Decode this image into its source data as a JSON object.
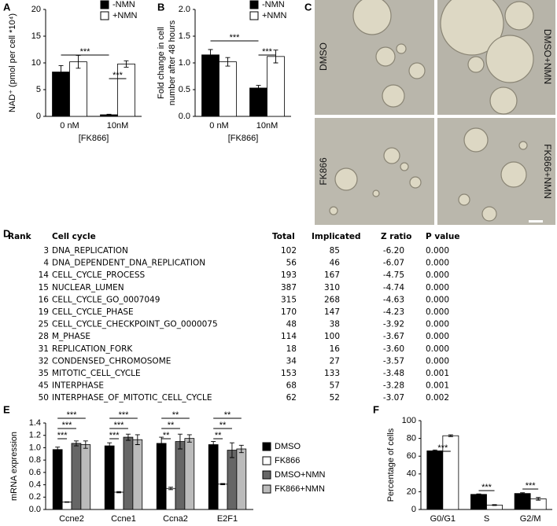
{
  "panels": [
    "A",
    "B",
    "C",
    "D",
    "E",
    "F"
  ],
  "images": [
    "DMSO",
    "DMSO+NMN",
    "FK866",
    "FK866+NMN"
  ],
  "chart_data": [
    {
      "type": "bar",
      "ylabel": "NAD⁺ (pmol per cell *10⁴)",
      "xlabel": "[FK866]",
      "categories": [
        "0 nM",
        "10nM"
      ],
      "series": [
        {
          "name": "-NMN",
          "color": "#000000",
          "values": [
            8.3,
            0.3
          ],
          "errors": [
            1.2,
            0.1
          ]
        },
        {
          "name": "+NMN",
          "color": "#ffffff",
          "values": [
            10.2,
            9.8
          ],
          "errors": [
            1.2,
            0.6
          ]
        }
      ],
      "ylim": [
        0,
        20
      ],
      "yticks": [
        0,
        5,
        10,
        15,
        20
      ],
      "annotations": [
        "***",
        "***"
      ]
    },
    {
      "type": "bar",
      "ylabel": "Fold change in cell number after 48 hours",
      "xlabel": "[FK866]",
      "categories": [
        "0 nM",
        "10nM"
      ],
      "series": [
        {
          "name": "-NMN",
          "color": "#000000",
          "values": [
            1.15,
            0.53
          ],
          "errors": [
            0.1,
            0.05
          ]
        },
        {
          "name": "+NMN",
          "color": "#ffffff",
          "values": [
            1.02,
            1.12
          ],
          "errors": [
            0.08,
            0.12
          ]
        }
      ],
      "ylim": [
        0,
        2
      ],
      "yticks": [
        {
          "value": 0,
          "label": "0.0"
        },
        {
          "value": 0.5,
          "label": "0.5"
        },
        {
          "value": 1,
          "label": "1.0"
        },
        {
          "value": 1.5,
          "label": "1.5"
        },
        {
          "value": 2,
          "label": "2.0"
        }
      ],
      "annotations": [
        "***",
        "***"
      ]
    },
    {
      "type": "bar",
      "ylabel": "mRNA expression",
      "categories": [
        "Ccne2",
        "Ccne1",
        "Ccna2",
        "E2F1"
      ],
      "series": [
        {
          "name": "DMSO",
          "color": "#000000",
          "values": [
            0.97,
            1.03,
            1.07,
            1.05
          ],
          "errors": [
            0.04,
            0.05,
            0.1,
            0.05
          ]
        },
        {
          "name": "FK866",
          "color": "#ffffff",
          "values": [
            0.12,
            0.28,
            0.34,
            0.41
          ],
          "errors": [
            0.005,
            0.01,
            0.02,
            0.01
          ]
        },
        {
          "name": "DMSO+NMN",
          "color": "#666666",
          "values": [
            1.07,
            1.17,
            1.1,
            0.96
          ],
          "errors": [
            0.04,
            0.05,
            0.12,
            0.12
          ]
        },
        {
          "name": "FK866+NMN",
          "color": "#bbbbbb",
          "values": [
            1.05,
            1.13,
            1.15,
            0.98
          ],
          "errors": [
            0.06,
            0.08,
            0.06,
            0.06
          ]
        }
      ],
      "ylim": [
        0,
        1.4
      ],
      "yticks": [
        {
          "value": 0,
          "label": "0.0"
        },
        0.2,
        0.4,
        0.6,
        0.8,
        {
          "value": 1,
          "label": "1.0"
        },
        1.2,
        1.4
      ],
      "annotations": [
        "***",
        "***",
        "***",
        "***",
        "***",
        "***",
        "**",
        "**",
        "**",
        "**",
        "**",
        "**"
      ]
    },
    {
      "type": "bar",
      "ylabel": "Percentage of cells",
      "categories": [
        "G0/G1",
        "S",
        "G2/M"
      ],
      "series": [
        {
          "color": "#000000",
          "values": [
            66,
            17,
            18
          ],
          "errors": [
            1,
            0.5,
            0.8
          ]
        },
        {
          "color": "#ffffff",
          "values": [
            83,
            5,
            12
          ],
          "errors": [
            1,
            0.5,
            1.5
          ]
        }
      ],
      "ylim": [
        0,
        100
      ],
      "yticks": [
        0,
        20,
        40,
        60,
        80,
        100
      ],
      "annotations": [
        "***",
        "***",
        "***"
      ]
    }
  ],
  "table": {
    "header": [
      "Rank",
      "Cell cycle",
      "Total",
      "Implicated",
      "Z ratio",
      "P value"
    ],
    "rows": [
      [
        "3",
        "DNA_REPLICATION",
        "102",
        "85",
        "-6.20",
        "0.000"
      ],
      [
        "4",
        "DNA_DEPENDENT_DNA_REPLICATION",
        "56",
        "46",
        "-6.07",
        "0.000"
      ],
      [
        "14",
        "CELL_CYCLE_PROCESS",
        "193",
        "167",
        "-4.75",
        "0.000"
      ],
      [
        "15",
        "NUCLEAR_LUMEN",
        "387",
        "310",
        "-4.74",
        "0.000"
      ],
      [
        "16",
        "CELL_CYCLE_GO_0007049",
        "315",
        "268",
        "-4.63",
        "0.000"
      ],
      [
        "19",
        "CELL_CYCLE_PHASE",
        "170",
        "147",
        "-4.23",
        "0.000"
      ],
      [
        "25",
        "CELL_CYCLE_CHECKPOINT_GO_0000075",
        "48",
        "38",
        "-3.92",
        "0.000"
      ],
      [
        "28",
        "M_PHASE",
        "114",
        "100",
        "-3.67",
        "0.000"
      ],
      [
        "31",
        "REPLICATION_FORK",
        "18",
        "16",
        "-3.60",
        "0.000"
      ],
      [
        "32",
        "CONDENSED_CHROMOSOME",
        "34",
        "27",
        "-3.57",
        "0.000"
      ],
      [
        "35",
        "MITOTIC_CELL_CYCLE",
        "153",
        "133",
        "-3.48",
        "0.001"
      ],
      [
        "45",
        "INTERPHASE",
        "68",
        "57",
        "-3.28",
        "0.001"
      ],
      [
        "50",
        "INTERPHASE_OF_MITOTIC_CELL_CYCLE",
        "62",
        "52",
        "-3.07",
        "0.002"
      ]
    ]
  }
}
